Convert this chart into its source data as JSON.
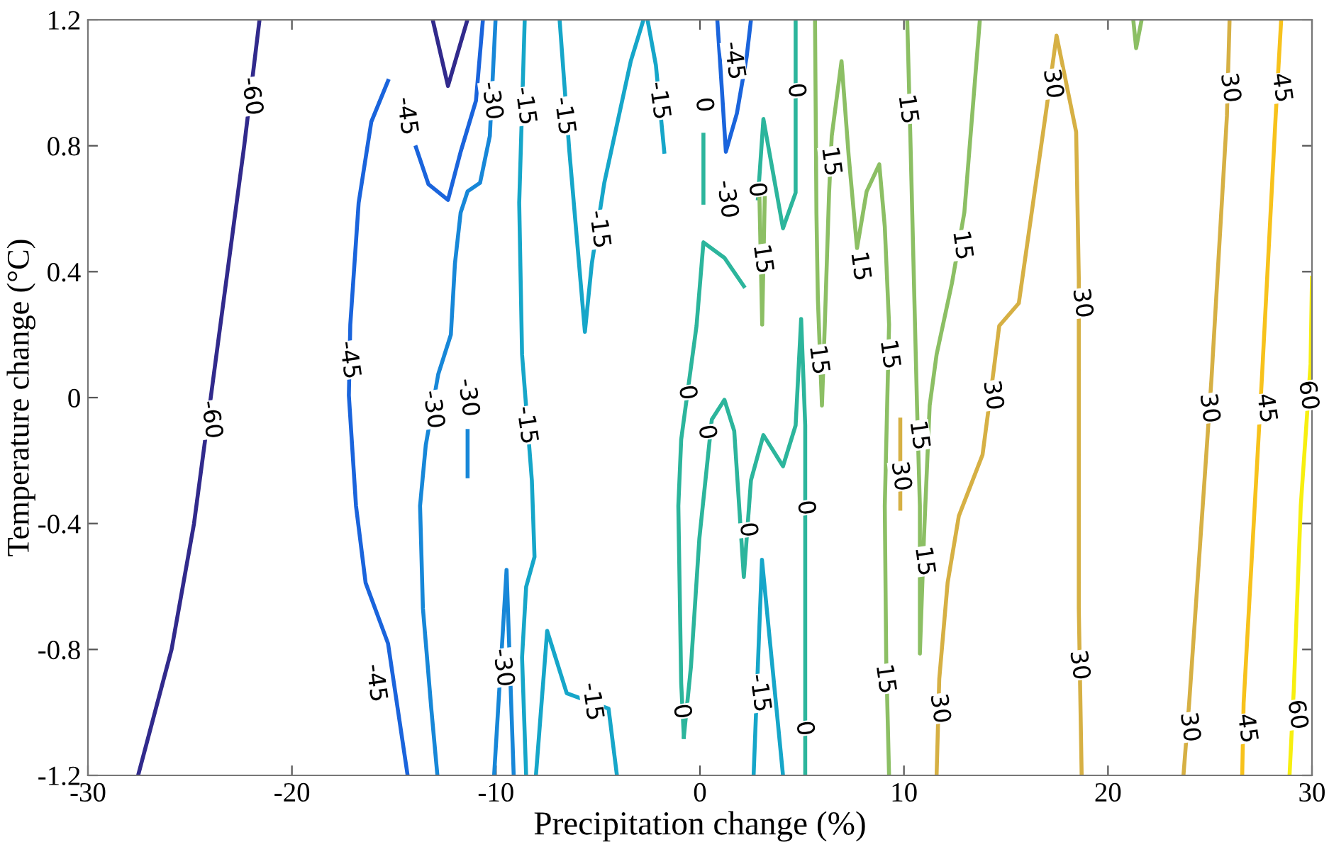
{
  "chart_data": {
    "type": "line",
    "xlabel": "Precipitation change (%)",
    "ylabel": "Temperature change (°C)",
    "xlim": [
      -30,
      30
    ],
    "ylim": [
      -1.2,
      1.2
    ],
    "xticks": [
      -30,
      -20,
      -10,
      0,
      10,
      20,
      30
    ],
    "yticks": [
      -1.2,
      -0.8,
      -0.4,
      0,
      0.4,
      0.8,
      1.2
    ],
    "grid": false,
    "legend": false,
    "line_style": "solid",
    "marker": "none",
    "series": [
      {
        "color": "#312a8c",
        "x": [
          -27.54,
          -25.9,
          -24.8,
          -23.98,
          -22.34,
          -21.59
        ],
        "values": [
          -1.2,
          -0.8,
          -0.4,
          0,
          0.8,
          1.2
        ]
      },
      {
        "color": "#312a8c",
        "x": [
          -13.1,
          -12.35,
          -11.4
        ],
        "values": [
          1.2,
          0.99,
          1.2
        ]
      },
      {
        "color": "#1a64dc",
        "x": [
          -15.29,
          -16.11,
          -16.73,
          -17.14,
          -17.21,
          -16.86,
          -16.39,
          -15.29,
          -14.33
        ],
        "values": [
          1.006,
          0.876,
          0.619,
          0.232,
          0.007,
          -0.344,
          -0.588,
          -0.781,
          -1.2
        ]
      },
      {
        "color": "#1a64dc",
        "x": [
          -13.92,
          -13.31,
          -12.35,
          -11.73,
          -10.98,
          -10.64
        ],
        "values": [
          0.795,
          0.678,
          0.628,
          0.781,
          0.943,
          1.2
        ]
      },
      {
        "color": "#1a64dc",
        "x": [
          0.85,
          1.06,
          1.27,
          1.81,
          2.29,
          2.5
        ],
        "values": [
          1.2,
          0.993,
          0.781,
          0.903,
          1.083,
          1.2
        ]
      },
      {
        "color": "#1787d8",
        "x": [
          -10.02,
          -10.3,
          -10.78,
          -11.39,
          -11.73,
          -12.01,
          -12.21,
          -12.83,
          -13.44,
          -13.72,
          -13.58,
          -13.17,
          -12.87
        ],
        "values": [
          1.2,
          0.831,
          0.682,
          0.655,
          0.588,
          0.426,
          0.2,
          0.074,
          -0.151,
          -0.344,
          -0.669,
          -0.988,
          -1.2
        ]
      },
      {
        "color": "#1787d8",
        "x": [
          -11.39,
          -11.39
        ],
        "values": [
          -0.106,
          -0.25
        ]
      },
      {
        "color": "#1787d8",
        "x": [
          -10.09,
          -9.48,
          -9.13
        ],
        "values": [
          -1.2,
          -0.547,
          -1.2
        ]
      },
      {
        "color": "#16a6c9",
        "x": [
          -8.59,
          -8.86,
          -8.72,
          -8.24,
          -8.11,
          -8.52,
          -8.72,
          -8.52
        ],
        "values": [
          1.2,
          0.619,
          0.137,
          -0.263,
          -0.506,
          -0.601,
          -0.826,
          -1.2
        ]
      },
      {
        "color": "#16a6c9",
        "x": [
          -6.88,
          -6.4,
          -5.64,
          -5.3,
          -4.69,
          -3.39,
          -2.77
        ],
        "values": [
          1.2,
          0.781,
          0.209,
          0.426,
          0.682,
          1.069,
          1.2
        ]
      },
      {
        "color": "#16a6c9",
        "x": [
          -2.57,
          -2.16,
          -1.75
        ],
        "values": [
          1.2,
          1.056,
          0.781
        ]
      },
      {
        "color": "#16a6c9",
        "x": [
          -8.04,
          -7.49,
          -6.53,
          -4.48,
          -4.07
        ],
        "values": [
          -1.2,
          -0.741,
          -0.939,
          -0.988,
          -1.2
        ]
      },
      {
        "color": "#16a6c9",
        "x": [
          2.63,
          3.04,
          4.07
        ],
        "values": [
          -1.2,
          -0.515,
          -1.2
        ]
      },
      {
        "color": "#2cb59c",
        "x": [
          2.15,
          1.2,
          0.17,
          -0.17,
          -0.92,
          -1.06,
          -0.92,
          -0.79
        ],
        "values": [
          0.354,
          0.444,
          0.493,
          0.227,
          -0.133,
          -0.344,
          -0.907,
          -1.078
        ]
      },
      {
        "color": "#2cb59c",
        "x": [
          -0.79,
          -0.44,
          -0.03,
          0.58,
          1.2,
          1.68,
          2.15,
          2.5,
          3.11,
          4.07,
          4.69,
          4.96,
          5.16,
          5.16,
          5.16
        ],
        "values": [
          -1.078,
          -0.853,
          -0.448,
          -0.07,
          -0.007,
          -0.106,
          -0.57,
          -0.263,
          -0.119,
          -0.218,
          -0.088,
          0.25,
          -0.088,
          -0.763,
          -1.2
        ]
      },
      {
        "color": "#2cb59c",
        "x": [
          4.69,
          4.69,
          4.07,
          3.11,
          2.84
        ],
        "values": [
          1.2,
          0.651,
          0.538,
          0.885,
          0.633
        ]
      },
      {
        "color": "#2cb59c",
        "x": [
          0.17,
          0.17
        ],
        "values": [
          0.835,
          0.619
        ]
      },
      {
        "color": "#8cbf64",
        "x": [
          2.91,
          3.05,
          3.18
        ],
        "values": [
          0.651,
          0.232,
          0.651
        ]
      },
      {
        "color": "#8cbf64",
        "x": [
          5.64,
          5.71,
          5.78,
          5.98,
          6.12,
          6.33,
          6.46,
          6.94,
          7.29,
          7.7,
          8.17,
          8.79,
          9.06,
          9.27,
          9.06,
          9.13,
          9.27
        ],
        "values": [
          1.2,
          0.585,
          0.313,
          -0.025,
          0.232,
          0.651,
          0.831,
          1.069,
          0.768,
          0.475,
          0.655,
          0.741,
          0.543,
          0.232,
          -0.344,
          -0.831,
          -1.2
        ]
      },
      {
        "color": "#8cbf64",
        "x": [
          10.16,
          10.3,
          10.64,
          10.78,
          10.78,
          10.98,
          11.26,
          11.6,
          12.35,
          12.96,
          13.72
        ],
        "values": [
          1.2,
          0.862,
          -0.025,
          -0.344,
          -0.813,
          -0.443,
          -0.025,
          0.137,
          0.363,
          0.588,
          1.2
        ]
      },
      {
        "color": "#8cbf64",
        "x": [
          21.24,
          21.38,
          21.65
        ],
        "values": [
          1.2,
          1.11,
          1.2
        ]
      },
      {
        "color": "#d6b044",
        "x": [
          11.6,
          11.73,
          12.14,
          12.69,
          13.85,
          14.4,
          14.67,
          15.63,
          17.0,
          17.48,
          18.44,
          18.57,
          18.57,
          18.71
        ],
        "values": [
          -1.2,
          -0.894,
          -0.588,
          -0.376,
          -0.182,
          0.088,
          0.228,
          0.3,
          0.925,
          1.15,
          0.844,
          0.381,
          -0.669,
          -1.2
        ]
      },
      {
        "color": "#d6b044",
        "x": [
          9.82,
          9.82
        ],
        "values": [
          -0.07,
          -0.353
        ]
      },
      {
        "color": "#d6b044",
        "x": [
          25.96,
          25.83,
          25.07,
          23.98,
          23.7
        ],
        "values": [
          1.2,
          0.894,
          0.056,
          -0.97,
          -1.2
        ]
      },
      {
        "color": "#f7c21c",
        "x": [
          28.49,
          28.22,
          27.54,
          26.65,
          26.58
        ],
        "values": [
          1.2,
          0.894,
          0.056,
          -0.97,
          -1.2
        ]
      },
      {
        "color": "#f7ef0f",
        "x": [
          30,
          29.93,
          29.45,
          29.11,
          28.9
        ],
        "values": [
          0.381,
          0.106,
          -0.344,
          -0.925,
          -1.2
        ]
      }
    ],
    "annotations": [
      {
        "text": "-60",
        "x": -22.0,
        "y": 0.957
      },
      {
        "text": "-60",
        "x": -23.98,
        "y": -0.07
      },
      {
        "text": "-45",
        "x": -14.4,
        "y": 0.894
      },
      {
        "text": "-45",
        "x": -17.21,
        "y": 0.119
      },
      {
        "text": "-45",
        "x": -15.91,
        "y": -0.907
      },
      {
        "text": "-45",
        "x": 1.65,
        "y": 1.07
      },
      {
        "text": "-30",
        "x": -10.23,
        "y": 0.943
      },
      {
        "text": "-30",
        "x": -13.1,
        "y": -0.038
      },
      {
        "text": "-30",
        "x": -11.39,
        "y": 0.0
      },
      {
        "text": "-30",
        "x": -9.68,
        "y": -0.858
      },
      {
        "text": "-30",
        "x": 1.3,
        "y": 0.63
      },
      {
        "text": "0",
        "x": 0.17,
        "y": 0.93
      },
      {
        "text": "-15",
        "x": -8.59,
        "y": 0.926
      },
      {
        "text": "-15",
        "x": -6.67,
        "y": 0.894
      },
      {
        "text": "-15",
        "x": -2.02,
        "y": 0.943
      },
      {
        "text": "-15",
        "x": -4.96,
        "y": 0.534
      },
      {
        "text": "-15",
        "x": -8.52,
        "y": -0.088
      },
      {
        "text": "-15",
        "x": -5.3,
        "y": -0.966
      },
      {
        "text": "-15",
        "x": 2.91,
        "y": -0.939
      },
      {
        "text": "0",
        "x": 4.69,
        "y": 0.975
      },
      {
        "text": "0",
        "x": 2.77,
        "y": 0.66
      },
      {
        "text": "0",
        "x": -0.65,
        "y": 0.016
      },
      {
        "text": "0",
        "x": 0.31,
        "y": -0.11
      },
      {
        "text": "0",
        "x": 2.33,
        "y": -0.42
      },
      {
        "text": "0",
        "x": 5.16,
        "y": -0.35
      },
      {
        "text": "0",
        "x": -0.92,
        "y": -0.997
      },
      {
        "text": "0",
        "x": 5.1,
        "y": -1.051
      },
      {
        "text": "15",
        "x": 3.05,
        "y": 0.44
      },
      {
        "text": "15",
        "x": 6.4,
        "y": 0.75
      },
      {
        "text": "15",
        "x": 7.83,
        "y": 0.417
      },
      {
        "text": "15",
        "x": 5.8,
        "y": 0.12
      },
      {
        "text": "15",
        "x": 10.16,
        "y": 0.916
      },
      {
        "text": "15",
        "x": 9.27,
        "y": 0.137
      },
      {
        "text": "15",
        "x": 10.72,
        "y": -0.12
      },
      {
        "text": "15",
        "x": 10.98,
        "y": -0.52
      },
      {
        "text": "15",
        "x": 9.06,
        "y": -0.894
      },
      {
        "text": "15",
        "x": 12.83,
        "y": 0.484
      },
      {
        "text": "30",
        "x": 17.27,
        "y": 0.997
      },
      {
        "text": "30",
        "x": 18.71,
        "y": 0.3
      },
      {
        "text": "30",
        "x": 14.33,
        "y": 0.007
      },
      {
        "text": "30",
        "x": 9.82,
        "y": -0.25
      },
      {
        "text": "30",
        "x": 18.57,
        "y": -0.85
      },
      {
        "text": "30",
        "x": 11.73,
        "y": -0.988
      },
      {
        "text": "30",
        "x": 25.96,
        "y": 0.984
      },
      {
        "text": "30",
        "x": 24.94,
        "y": -0.034
      },
      {
        "text": "30",
        "x": 23.98,
        "y": -1.047
      },
      {
        "text": "45",
        "x": 28.49,
        "y": 0.984
      },
      {
        "text": "45",
        "x": 27.74,
        "y": -0.034
      },
      {
        "text": "45",
        "x": 26.79,
        "y": -1.051
      },
      {
        "text": "60",
        "x": 29.79,
        "y": 0.007
      },
      {
        "text": "60",
        "x": 29.25,
        "y": -1.007
      }
    ]
  }
}
